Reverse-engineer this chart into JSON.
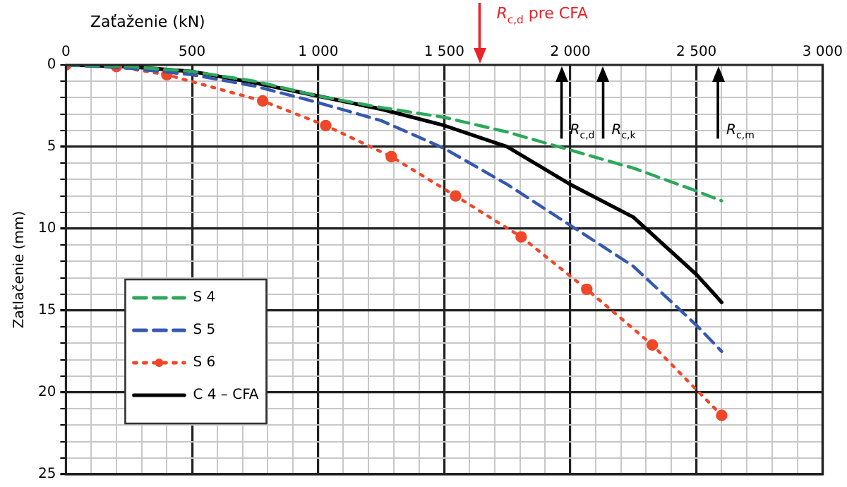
{
  "chart_data": {
    "type": "line",
    "xlabel": "Zaťaženie (kN)",
    "ylabel": "Zatlačenie (mm)",
    "xlim": [
      0,
      3000
    ],
    "xticks": [
      0,
      {
        "value": 100,
        "label": null
      },
      {
        "value": 200,
        "label": null
      },
      {
        "value": 300,
        "label": null
      },
      {
        "value": 400,
        "label": null
      },
      500,
      {
        "value": 600,
        "label": null
      },
      {
        "value": 700,
        "label": null
      },
      {
        "value": 800,
        "label": null
      },
      {
        "value": 900,
        "label": null
      },
      {
        "value": 1000,
        "label": "1 000"
      },
      {
        "value": 1100,
        "label": null
      },
      {
        "value": 1200,
        "label": null
      },
      {
        "value": 1300,
        "label": null
      },
      {
        "value": 1400,
        "label": null
      },
      {
        "value": 1500,
        "label": "1 500"
      },
      {
        "value": 1600,
        "label": null
      },
      {
        "value": 1700,
        "label": null
      },
      {
        "value": 1800,
        "label": null
      },
      {
        "value": 1900,
        "label": null
      },
      {
        "value": 2000,
        "label": "2 000"
      },
      {
        "value": 2100,
        "label": null
      },
      {
        "value": 2200,
        "label": null
      },
      {
        "value": 2300,
        "label": null
      },
      {
        "value": 2400,
        "label": null
      },
      {
        "value": 2500,
        "label": "2 500"
      },
      {
        "value": 2600,
        "label": null
      },
      {
        "value": 2700,
        "label": null
      },
      {
        "value": 2800,
        "label": null
      },
      {
        "value": 2900,
        "label": null
      },
      {
        "value": 3000,
        "label": "3 000"
      }
    ],
    "ylim": [
      25,
      0
    ],
    "yticks": [
      0,
      {
        "value": 1,
        "label": null
      },
      {
        "value": 2,
        "label": null
      },
      {
        "value": 3,
        "label": null
      },
      {
        "value": 4,
        "label": null
      },
      5,
      {
        "value": 6,
        "label": null
      },
      {
        "value": 7,
        "label": null
      },
      {
        "value": 8,
        "label": null
      },
      {
        "value": 9,
        "label": null
      },
      10,
      {
        "value": 11,
        "label": null
      },
      {
        "value": 12,
        "label": null
      },
      {
        "value": 13,
        "label": null
      },
      {
        "value": 14,
        "label": null
      },
      15,
      {
        "value": 16,
        "label": null
      },
      {
        "value": 17,
        "label": null
      },
      {
        "value": 18,
        "label": null
      },
      {
        "value": 19,
        "label": null
      },
      20,
      {
        "value": 21,
        "label": null
      },
      {
        "value": 22,
        "label": null
      },
      {
        "value": 23,
        "label": null
      },
      {
        "value": 24,
        "label": null
      },
      25
    ],
    "grid": true,
    "legend": "bottom left",
    "series": [
      {
        "name": "S 4",
        "color": "#2ca85a",
        "line_style": "dashed",
        "marker": "none",
        "x": [
          0,
          250,
          500,
          750,
          1000,
          1250,
          1500,
          1750,
          2000,
          2250,
          2500,
          2600
        ],
        "values": [
          0,
          0.1,
          0.4,
          1.0,
          1.9,
          2.6,
          3.2,
          4.1,
          5.2,
          6.3,
          7.7,
          8.3
        ]
      },
      {
        "name": "S 5",
        "color": "#3558b0",
        "line_style": "dashed",
        "marker": "none",
        "x": [
          0,
          250,
          500,
          750,
          1000,
          1250,
          1500,
          1750,
          2000,
          2250,
          2500,
          2600
        ],
        "values": [
          0,
          0.2,
          0.6,
          1.3,
          2.3,
          3.4,
          5.1,
          7.3,
          9.8,
          12.3,
          15.9,
          17.5
        ]
      },
      {
        "name": "S 6",
        "color": "#f0472a",
        "line_style": "dotted",
        "marker": "circle",
        "x": [
          0,
          200,
          400,
          780,
          1030,
          1290,
          1545,
          1805,
          2065,
          2325,
          2600
        ],
        "values": [
          0,
          0.1,
          0.6,
          2.2,
          3.7,
          5.6,
          8.0,
          10.5,
          13.7,
          17.1,
          21.4
        ]
      },
      {
        "name": "C 4 – CFA",
        "color": "#000000",
        "line_style": "solid",
        "marker": "none",
        "x": [
          0,
          250,
          500,
          750,
          1000,
          1250,
          1500,
          1750,
          2000,
          2250,
          2500,
          2600
        ],
        "values": [
          0,
          0.1,
          0.4,
          1.1,
          1.9,
          2.7,
          3.7,
          5.0,
          7.3,
          9.3,
          12.8,
          14.5
        ]
      }
    ],
    "ref_lines": [
      {
        "axis": "x",
        "value": 1640,
        "label": "R$_{c,d}$ pre CFA",
        "color": "#e8242a"
      },
      {
        "axis": "x",
        "value": 1965,
        "label": "R$_{c,d}$",
        "color": "#000000"
      },
      {
        "axis": "x",
        "value": 2130,
        "label": "R$_{c,k}$",
        "color": "#000000"
      },
      {
        "axis": "x",
        "value": 2585,
        "label": "R$_{c,m}$",
        "color": "#000000"
      }
    ]
  }
}
